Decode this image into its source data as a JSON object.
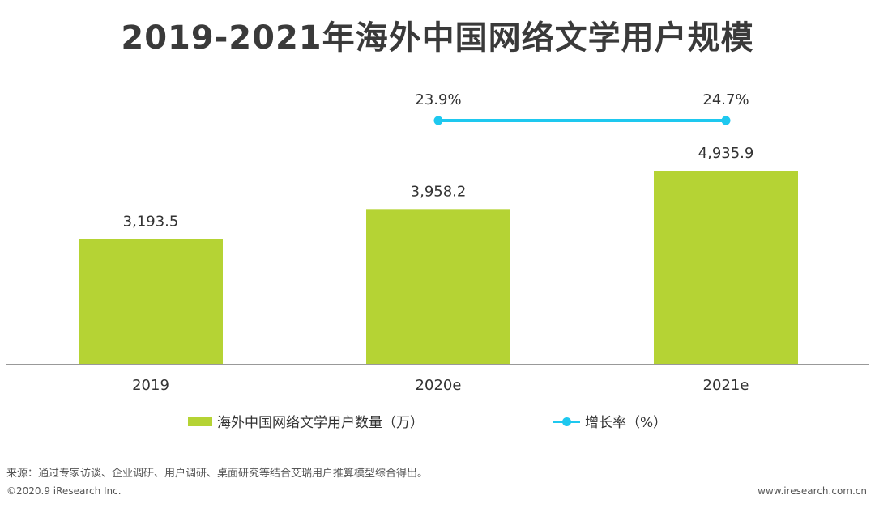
{
  "title": "2019-2021年海外中国网络文学用户规模",
  "colors": {
    "bar": "#b5d334",
    "line": "#1ec8ef",
    "axis": "#999999"
  },
  "chart_data": {
    "type": "bar",
    "title": "2019-2021年海外中国网络文学用户规模",
    "categories": [
      "2019",
      "2020e",
      "2021e"
    ],
    "series": [
      {
        "name": "海外中国网络文学用户数量（万）",
        "kind": "bar",
        "values": [
          3193.5,
          3958.2,
          4935.9
        ],
        "labels": [
          "3,193.5",
          "3,958.2",
          "4,935.9"
        ]
      },
      {
        "name": "增长率（%）",
        "kind": "line",
        "values": [
          null,
          23.9,
          24.7
        ],
        "labels": [
          "",
          "23.9%",
          "24.7%"
        ]
      }
    ],
    "ylim": [
      0,
      6000
    ],
    "legend_position": "bottom",
    "grid": false
  },
  "legend": {
    "bar_label": "海外中国网络文学用户数量（万）",
    "line_label": "增长率（%）"
  },
  "source": "来源：通过专家访谈、企业调研、用户调研、桌面研究等结合艾瑞用户推算模型综合得出。",
  "footer": {
    "copyright": "©2020.9 iResearch Inc.",
    "website": "www.iresearch.com.cn"
  }
}
